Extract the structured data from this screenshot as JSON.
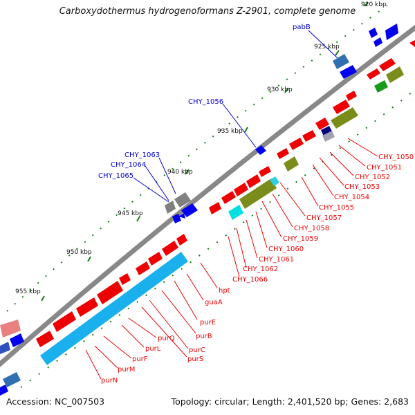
{
  "title": "Carboxydothermus hydrogenoformans Z-2901, complete genome",
  "footer": {
    "accession": "Accession: NC_007503",
    "topology": "Topology: circular; Length: 2,401,520 bp; Genes: 2,683"
  },
  "kbp_ticks": [
    "920 kbp",
    "925 kbp",
    "930 kbp",
    "935 kbp",
    "940 kbp",
    "945 kbp",
    "950 kbp",
    "955 kbp"
  ],
  "blue_labels": [
    "pabB",
    "CHY_1056",
    "CHY_1063",
    "CHY_1064",
    "CHY_1065"
  ],
  "red_labels": [
    "CHY_1050",
    "CHY_1051",
    "CHY_1052",
    "CHY_1053",
    "CHY_1054",
    "CHY_1055",
    "CHY_1057",
    "CHY_1058",
    "CHY_1059",
    "CHY_1060",
    "CHY_1061",
    "CHY_1062",
    "CHY_1066",
    "hpt",
    "guaA",
    "purE",
    "purB",
    "purC",
    "purS",
    "purQ",
    "purL",
    "purF",
    "purM",
    "purN"
  ],
  "colors": {
    "backbone": "#888888",
    "reverse_strand": "#ee0000",
    "forward_strand": "#0000ee",
    "olive": "#7a8c1a",
    "cyan": "#1ab0ee",
    "tick_green": "#1a7a1a",
    "grey": "#808080",
    "label_red": "#ee0000",
    "label_blue": "#0000cc"
  }
}
